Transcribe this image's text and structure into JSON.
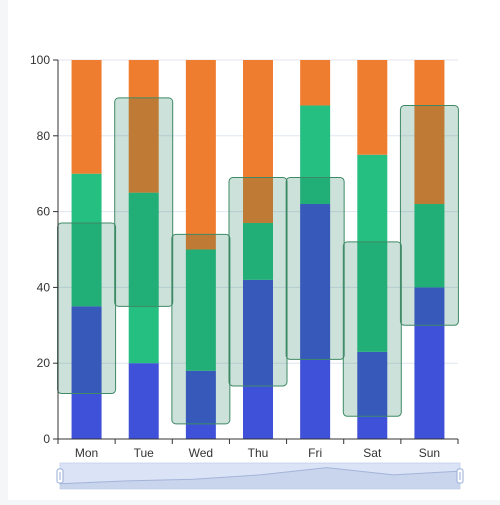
{
  "chart_data": {
    "type": "bar",
    "stacked": true,
    "categories": [
      "Mon",
      "Tue",
      "Wed",
      "Thu",
      "Fri",
      "Sat",
      "Sun"
    ],
    "ylim": [
      0,
      100
    ],
    "yticks": [
      "0",
      "20",
      "40",
      "60",
      "80",
      "100"
    ],
    "grid": true,
    "series": [
      {
        "values": [
          35,
          20,
          18,
          42,
          62,
          23,
          40
        ],
        "color": "#3f51d8"
      },
      {
        "values": [
          35,
          45,
          32,
          15,
          26,
          52,
          22
        ],
        "color": "#26bf82"
      },
      {
        "values": [
          30,
          35,
          50,
          43,
          12,
          25,
          38
        ],
        "color": "#ef7d2f"
      }
    ],
    "ranges": [
      {
        "low": 12,
        "high": 57
      },
      {
        "low": 35,
        "high": 90
      },
      {
        "low": 4,
        "high": 54
      },
      {
        "low": 14,
        "high": 69
      },
      {
        "low": 21,
        "high": 69
      },
      {
        "low": 6,
        "high": 52
      },
      {
        "low": 30,
        "high": 88
      }
    ],
    "range_fill": "rgba(22,120,80,0.22)",
    "range_stroke": "#3e8a66",
    "data_zoom": {
      "start": 0,
      "end": 100,
      "preview_values": [
        0.15,
        0.28,
        0.35,
        0.55,
        0.88,
        0.55,
        0.72
      ]
    }
  }
}
